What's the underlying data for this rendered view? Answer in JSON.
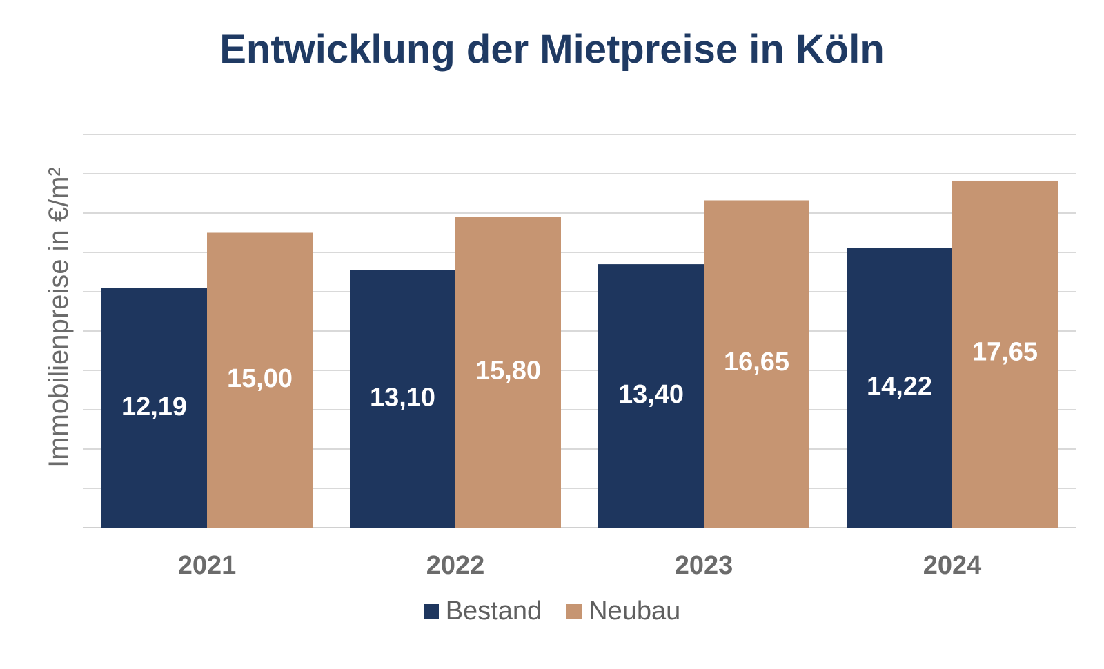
{
  "chart_data": {
    "type": "bar",
    "title": "Entwicklung der Mietpreise in Köln",
    "xlabel": "",
    "ylabel": "Immobilienpreise in €/m²",
    "categories": [
      "2021",
      "2022",
      "2023",
      "2024"
    ],
    "series": [
      {
        "name": "Bestand",
        "color": "#1e365e",
        "values": [
          12.19,
          13.1,
          13.4,
          14.22
        ],
        "labels": [
          "12,19",
          "13,10",
          "13,40",
          "14,22"
        ]
      },
      {
        "name": "Neubau",
        "color": "#c69572",
        "values": [
          15.0,
          15.8,
          16.65,
          17.65
        ],
        "labels": [
          "15,00",
          "15,80",
          "16,65",
          "17,65"
        ]
      }
    ],
    "ylim": [
      0,
      20
    ],
    "grid": true,
    "legend_position": "bottom",
    "yticks_visible": false
  }
}
